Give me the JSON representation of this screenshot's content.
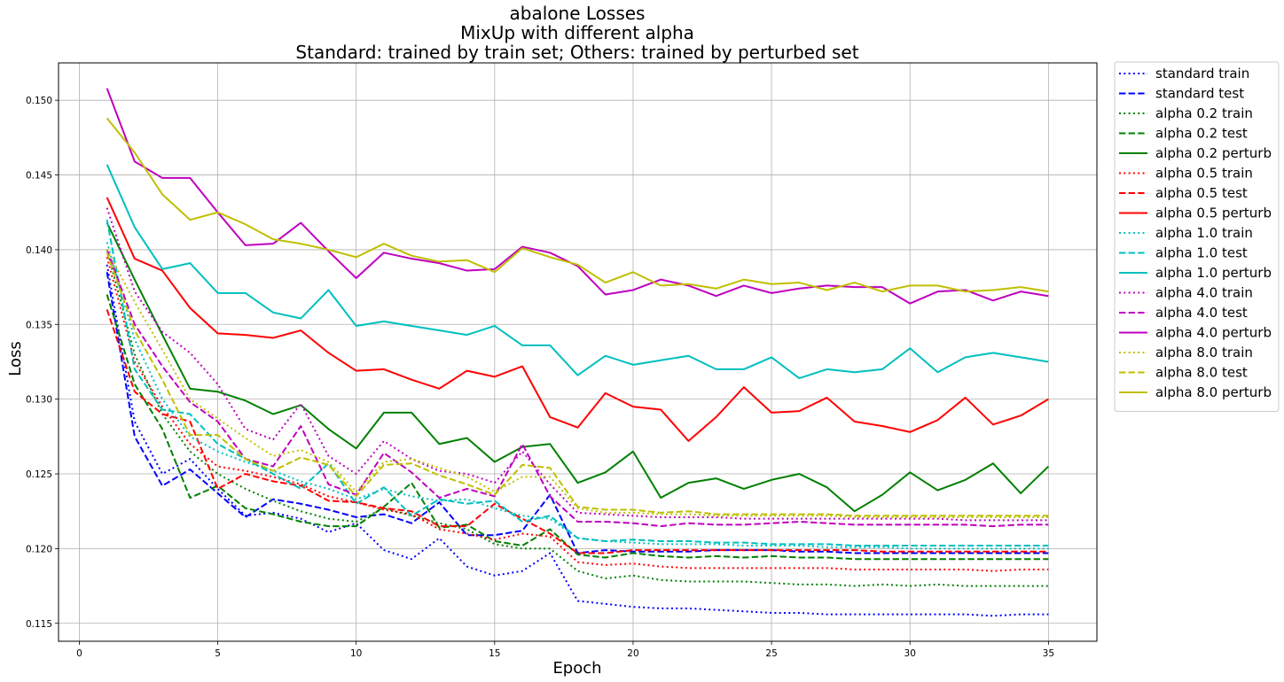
{
  "chart_data": {
    "type": "line",
    "title": [
      "abalone Losses",
      "MixUp with different alpha",
      "Standard: trained by train set; Others: trained by perturbed set"
    ],
    "xlabel": "Epoch",
    "ylabel": "Loss",
    "xlim": [
      -0.75,
      36.75
    ],
    "ylim": [
      0.1138,
      0.1525
    ],
    "xticks": [
      0,
      5,
      10,
      15,
      20,
      25,
      30,
      35
    ],
    "yticks": [
      0.115,
      0.12,
      0.125,
      0.13,
      0.135,
      0.14,
      0.145,
      0.15
    ],
    "ytick_labels": [
      "0.115",
      "0.120",
      "0.125",
      "0.130",
      "0.135",
      "0.140",
      "0.145",
      "0.150"
    ],
    "grid": true,
    "legend_position": "outside-right-top",
    "x": [
      1,
      2,
      3,
      4,
      5,
      6,
      7,
      8,
      9,
      10,
      11,
      12,
      13,
      14,
      15,
      16,
      17,
      18,
      19,
      20,
      21,
      22,
      23,
      24,
      25,
      26,
      27,
      28,
      29,
      30,
      31,
      32,
      33,
      34,
      35
    ],
    "series": [
      {
        "name": "standard train",
        "color": "#0000ff",
        "style": "dotted",
        "values": [
          0.139,
          0.1285,
          0.125,
          0.126,
          0.124,
          0.1222,
          0.1224,
          0.122,
          0.1211,
          0.1217,
          0.1199,
          0.1193,
          0.1207,
          0.1188,
          0.1182,
          0.1185,
          0.1197,
          0.1165,
          0.1163,
          0.1161,
          0.116,
          0.116,
          0.1159,
          0.1158,
          0.1157,
          0.1157,
          0.1156,
          0.1156,
          0.1156,
          0.1156,
          0.1156,
          0.1156,
          0.1155,
          0.1156,
          0.1156
        ]
      },
      {
        "name": "standard test",
        "color": "#0000ff",
        "style": "dashed",
        "values": [
          0.1385,
          0.1275,
          0.1242,
          0.1253,
          0.1237,
          0.1221,
          0.1233,
          0.123,
          0.1226,
          0.1221,
          0.1223,
          0.1217,
          0.1231,
          0.1209,
          0.1209,
          0.1212,
          0.1236,
          0.1197,
          0.1199,
          0.1198,
          0.1198,
          0.1198,
          0.1199,
          0.1199,
          0.1199,
          0.1198,
          0.1198,
          0.1197,
          0.1197,
          0.1197,
          0.1197,
          0.1197,
          0.1197,
          0.1197,
          0.1197
        ]
      },
      {
        "name": "alpha 0.2 train",
        "color": "#008000",
        "style": "dotted",
        "values": [
          0.14,
          0.133,
          0.129,
          0.1265,
          0.125,
          0.124,
          0.1232,
          0.1225,
          0.122,
          0.1218,
          0.1227,
          0.1222,
          0.1217,
          0.1213,
          0.1203,
          0.12,
          0.12,
          0.1185,
          0.118,
          0.1182,
          0.1179,
          0.1178,
          0.1178,
          0.1178,
          0.1177,
          0.1176,
          0.1176,
          0.1175,
          0.1176,
          0.1175,
          0.1176,
          0.1175,
          0.1175,
          0.1175,
          0.1175
        ]
      },
      {
        "name": "alpha 0.2 test",
        "color": "#008000",
        "style": "dashed",
        "values": [
          0.137,
          0.131,
          0.128,
          0.1234,
          0.1242,
          0.1227,
          0.1223,
          0.1218,
          0.1215,
          0.1215,
          0.1228,
          0.1244,
          0.1214,
          0.1216,
          0.1205,
          0.1202,
          0.1213,
          0.1196,
          0.1194,
          0.1197,
          0.1195,
          0.1194,
          0.1195,
          0.1194,
          0.1195,
          0.1194,
          0.1194,
          0.1193,
          0.1193,
          0.1193,
          0.1193,
          0.1193,
          0.1193,
          0.1193,
          0.1193
        ]
      },
      {
        "name": "alpha 0.2 perturb",
        "color": "#008000",
        "style": "solid",
        "values": [
          0.1418,
          0.138,
          0.1343,
          0.1307,
          0.1305,
          0.1299,
          0.129,
          0.1296,
          0.128,
          0.1267,
          0.1291,
          0.1291,
          0.127,
          0.1274,
          0.1258,
          0.1268,
          0.127,
          0.1244,
          0.1251,
          0.1265,
          0.1234,
          0.1244,
          0.1247,
          0.124,
          0.1246,
          0.125,
          0.1241,
          0.1225,
          0.1236,
          0.1251,
          0.1239,
          0.1246,
          0.1257,
          0.1237,
          0.1255
        ]
      },
      {
        "name": "alpha 0.5 train",
        "color": "#ff0000",
        "style": "dotted",
        "values": [
          0.1395,
          0.1325,
          0.1295,
          0.127,
          0.1255,
          0.1252,
          0.1248,
          0.1243,
          0.1235,
          0.1231,
          0.1226,
          0.1223,
          0.1213,
          0.121,
          0.1206,
          0.121,
          0.1208,
          0.1191,
          0.1189,
          0.119,
          0.1188,
          0.1187,
          0.1187,
          0.1187,
          0.1187,
          0.1187,
          0.1187,
          0.1186,
          0.1186,
          0.1186,
          0.1186,
          0.1186,
          0.1185,
          0.1186,
          0.1186
        ]
      },
      {
        "name": "alpha 0.5 test",
        "color": "#ff0000",
        "style": "dashed",
        "values": [
          0.136,
          0.1305,
          0.129,
          0.1285,
          0.124,
          0.125,
          0.1245,
          0.1242,
          0.1232,
          0.1231,
          0.1227,
          0.1225,
          0.1215,
          0.1215,
          0.123,
          0.122,
          0.121,
          0.1197,
          0.1197,
          0.1199,
          0.1199,
          0.1199,
          0.1199,
          0.1199,
          0.1199,
          0.1199,
          0.1199,
          0.1199,
          0.1198,
          0.1198,
          0.1198,
          0.1198,
          0.1198,
          0.1198,
          0.1198
        ]
      },
      {
        "name": "alpha 0.5 perturb",
        "color": "#ff0000",
        "style": "solid",
        "values": [
          0.1435,
          0.1394,
          0.1386,
          0.1361,
          0.1344,
          0.1343,
          0.1341,
          0.1346,
          0.1331,
          0.1319,
          0.132,
          0.1313,
          0.1307,
          0.1319,
          0.1315,
          0.1322,
          0.1288,
          0.1281,
          0.1304,
          0.1295,
          0.1293,
          0.1272,
          0.1288,
          0.1308,
          0.1291,
          0.1292,
          0.1301,
          0.1285,
          0.1282,
          0.1278,
          0.1286,
          0.1301,
          0.1283,
          0.1289,
          0.13
        ]
      },
      {
        "name": "alpha 1.0 train",
        "color": "#00bfbf",
        "style": "dotted",
        "values": [
          0.1405,
          0.134,
          0.13,
          0.1275,
          0.1265,
          0.1258,
          0.1252,
          0.1245,
          0.124,
          0.1233,
          0.124,
          0.1235,
          0.1232,
          0.1233,
          0.1227,
          0.1222,
          0.122,
          0.1207,
          0.1205,
          0.1204,
          0.1203,
          0.1203,
          0.1203,
          0.1202,
          0.1202,
          0.1202,
          0.1201,
          0.1201,
          0.1201,
          0.12,
          0.12,
          0.12,
          0.12,
          0.12,
          0.12
        ]
      },
      {
        "name": "alpha 1.0 test",
        "color": "#00bfbf",
        "style": "dashed",
        "values": [
          0.142,
          0.132,
          0.1293,
          0.129,
          0.127,
          0.126,
          0.125,
          0.124,
          0.1257,
          0.123,
          0.1241,
          0.1222,
          0.1233,
          0.123,
          0.1232,
          0.1218,
          0.1222,
          0.1207,
          0.1205,
          0.1206,
          0.1205,
          0.1205,
          0.1204,
          0.1204,
          0.1203,
          0.1203,
          0.1203,
          0.1202,
          0.1202,
          0.1202,
          0.1202,
          0.1202,
          0.1202,
          0.1202,
          0.1202
        ]
      },
      {
        "name": "alpha 1.0 perturb",
        "color": "#00bfbf",
        "style": "solid",
        "values": [
          0.1457,
          0.1415,
          0.1387,
          0.1391,
          0.1371,
          0.1371,
          0.1358,
          0.1354,
          0.1373,
          0.1349,
          0.1352,
          0.1349,
          0.1346,
          0.1343,
          0.1349,
          0.1336,
          0.1336,
          0.1316,
          0.1329,
          0.1323,
          0.1326,
          0.1329,
          0.132,
          0.132,
          0.1328,
          0.1314,
          0.132,
          0.1318,
          0.132,
          0.1334,
          0.1318,
          0.1328,
          0.1331,
          0.1328,
          0.1325
        ]
      },
      {
        "name": "alpha 4.0 train",
        "color": "#bf00bf",
        "style": "dotted",
        "values": [
          0.1428,
          0.1372,
          0.1345,
          0.1331,
          0.131,
          0.128,
          0.1273,
          0.1297,
          0.1262,
          0.125,
          0.1272,
          0.126,
          0.1252,
          0.125,
          0.1244,
          0.1265,
          0.1243,
          0.1224,
          0.1223,
          0.1222,
          0.1221,
          0.1221,
          0.1221,
          0.122,
          0.122,
          0.122,
          0.122,
          0.122,
          0.122,
          0.122,
          0.122,
          0.1219,
          0.1219,
          0.1219,
          0.1219
        ]
      },
      {
        "name": "alpha 4.0 test",
        "color": "#bf00bf",
        "style": "dashed",
        "values": [
          0.14,
          0.135,
          0.1322,
          0.1298,
          0.1285,
          0.126,
          0.1255,
          0.1282,
          0.1243,
          0.1236,
          0.1264,
          0.1251,
          0.1234,
          0.124,
          0.1235,
          0.127,
          0.1235,
          0.1218,
          0.1218,
          0.1217,
          0.1215,
          0.1217,
          0.1216,
          0.1216,
          0.1217,
          0.1218,
          0.1217,
          0.1216,
          0.1216,
          0.1216,
          0.1216,
          0.1216,
          0.1215,
          0.1216,
          0.1216
        ]
      },
      {
        "name": "alpha 4.0 perturb",
        "color": "#bf00bf",
        "style": "solid",
        "values": [
          0.1508,
          0.1459,
          0.1448,
          0.1448,
          0.1425,
          0.1403,
          0.1404,
          0.1418,
          0.1399,
          0.1381,
          0.1398,
          0.1394,
          0.1391,
          0.1386,
          0.1387,
          0.1402,
          0.1398,
          0.1389,
          0.137,
          0.1373,
          0.138,
          0.1376,
          0.1369,
          0.1376,
          0.1371,
          0.1374,
          0.1376,
          0.1375,
          0.1375,
          0.1364,
          0.1372,
          0.1373,
          0.1366,
          0.1372,
          0.1369
        ]
      },
      {
        "name": "alpha 8.0 train",
        "color": "#bfbf00",
        "style": "dotted",
        "values": [
          0.14,
          0.1365,
          0.1333,
          0.13,
          0.1287,
          0.1274,
          0.1262,
          0.1266,
          0.1258,
          0.1238,
          0.1258,
          0.126,
          0.1254,
          0.1248,
          0.1238,
          0.1248,
          0.1248,
          0.1227,
          0.1224,
          0.1224,
          0.1223,
          0.1223,
          0.1222,
          0.1222,
          0.1222,
          0.1222,
          0.1222,
          0.1221,
          0.1221,
          0.1221,
          0.1221,
          0.1221,
          0.1221,
          0.1221,
          0.1221
        ]
      },
      {
        "name": "alpha 8.0 test",
        "color": "#bfbf00",
        "style": "dashed",
        "values": [
          0.1398,
          0.1346,
          0.1313,
          0.1276,
          0.1276,
          0.126,
          0.1252,
          0.1261,
          0.1256,
          0.1235,
          0.1256,
          0.1257,
          0.1249,
          0.1243,
          0.1236,
          0.1256,
          0.1254,
          0.1228,
          0.1226,
          0.1226,
          0.1224,
          0.1225,
          0.1223,
          0.1223,
          0.1223,
          0.1223,
          0.1223,
          0.1222,
          0.1222,
          0.1222,
          0.1222,
          0.1222,
          0.1222,
          0.1222,
          0.1222
        ]
      },
      {
        "name": "alpha 8.0 perturb",
        "color": "#bfbf00",
        "style": "solid",
        "values": [
          0.1488,
          0.1465,
          0.1437,
          0.142,
          0.1425,
          0.1417,
          0.1407,
          0.1404,
          0.14,
          0.1395,
          0.1404,
          0.1396,
          0.1392,
          0.1393,
          0.1385,
          0.1401,
          0.1395,
          0.139,
          0.1378,
          0.1385,
          0.1376,
          0.1377,
          0.1374,
          0.138,
          0.1377,
          0.1378,
          0.1373,
          0.1378,
          0.1372,
          0.1376,
          0.1376,
          0.1372,
          0.1373,
          0.1375,
          0.1372
        ]
      }
    ]
  }
}
